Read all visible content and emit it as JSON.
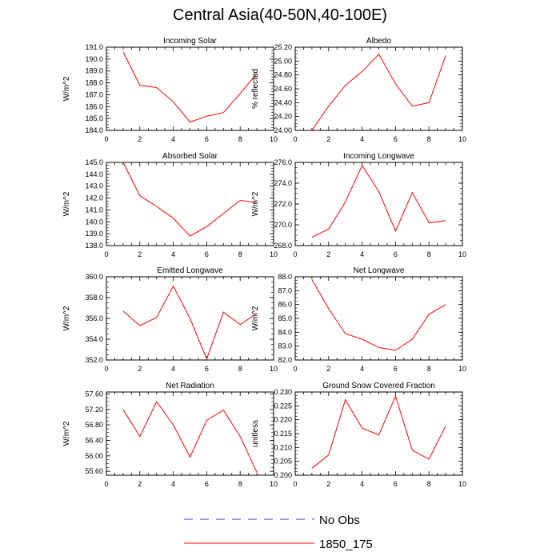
{
  "title": "Central Asia(40-50N,40-100E)",
  "legend": {
    "position": "bottom-center",
    "items": [
      {
        "label": "No Obs",
        "color": "#3b3bd6",
        "style": "dashed"
      },
      {
        "label": "1850_175",
        "color": "#ff0000",
        "style": "solid"
      }
    ]
  },
  "chart_data": [
    {
      "type": "line",
      "title": "Incoming Solar",
      "xlabel": "",
      "ylabel": "W/m^2",
      "xlim": [
        0,
        10
      ],
      "ylim": [
        184.0,
        191.0
      ],
      "xticks": [
        0,
        2,
        4,
        6,
        8,
        10
      ],
      "yticks": [
        "184.0",
        "185.0",
        "186.0",
        "187.0",
        "188.0",
        "189.0",
        "190.0",
        "191.0"
      ],
      "series": [
        {
          "name": "1850_175",
          "color": "#ff0000",
          "x": [
            1,
            2,
            3,
            4,
            5,
            6,
            7,
            8,
            9
          ],
          "y": [
            190.6,
            187.8,
            187.6,
            186.4,
            184.7,
            185.2,
            185.5,
            187.1,
            188.8
          ]
        }
      ]
    },
    {
      "type": "line",
      "title": "Albedo",
      "xlabel": "",
      "ylabel": "% reflected",
      "xlim": [
        0,
        10
      ],
      "ylim": [
        24.0,
        25.2
      ],
      "xticks": [
        0,
        2,
        4,
        6,
        8,
        10
      ],
      "yticks": [
        "24.00",
        "24.20",
        "24.40",
        "24.60",
        "24.80",
        "25.00",
        "25.20"
      ],
      "series": [
        {
          "name": "1850_175",
          "color": "#ff0000",
          "x": [
            1,
            2,
            3,
            4,
            5,
            6,
            7,
            8,
            9
          ],
          "y": [
            24.0,
            24.35,
            24.65,
            24.85,
            25.1,
            24.67,
            24.35,
            24.4,
            25.08
          ]
        }
      ]
    },
    {
      "type": "line",
      "title": "Absorbed Solar",
      "xlabel": "",
      "ylabel": "W/m^2",
      "xlim": [
        0,
        10
      ],
      "ylim": [
        138.0,
        145.0
      ],
      "xticks": [
        0,
        2,
        4,
        6,
        8,
        10
      ],
      "yticks": [
        "138.0",
        "139.0",
        "140.0",
        "141.0",
        "142.0",
        "143.0",
        "144.0",
        "145.0"
      ],
      "series": [
        {
          "name": "1850_175",
          "color": "#ff0000",
          "x": [
            1,
            2,
            3,
            4,
            5,
            6,
            7,
            8,
            9
          ],
          "y": [
            145.0,
            142.2,
            141.3,
            140.3,
            138.8,
            139.6,
            140.7,
            141.8,
            141.6
          ]
        }
      ]
    },
    {
      "type": "line",
      "title": "Incoming Longwave",
      "xlabel": "",
      "ylabel": "W/m^2",
      "xlim": [
        0,
        10
      ],
      "ylim": [
        268.0,
        276.0
      ],
      "xticks": [
        0,
        2,
        4,
        6,
        8,
        10
      ],
      "yticks": [
        "268.0",
        "270.0",
        "272.0",
        "274.0",
        "276.0"
      ],
      "series": [
        {
          "name": "1850_175",
          "color": "#ff0000",
          "x": [
            1,
            2,
            3,
            4,
            5,
            6,
            7,
            8,
            9
          ],
          "y": [
            268.8,
            269.6,
            272.2,
            275.7,
            273.2,
            269.4,
            273.1,
            270.2,
            270.4
          ]
        }
      ]
    },
    {
      "type": "line",
      "title": "Emitted Longwave",
      "xlabel": "",
      "ylabel": "W/m^2",
      "xlim": [
        0,
        10
      ],
      "ylim": [
        352.0,
        360.0
      ],
      "xticks": [
        0,
        2,
        4,
        6,
        8,
        10
      ],
      "yticks": [
        "352.0",
        "354.0",
        "356.0",
        "358.0",
        "360.0"
      ],
      "series": [
        {
          "name": "1850_175",
          "color": "#ff0000",
          "x": [
            1,
            2,
            3,
            4,
            5,
            6,
            7,
            8,
            9
          ],
          "y": [
            356.7,
            355.3,
            356.1,
            359.1,
            356.0,
            352.1,
            356.6,
            355.4,
            356.5
          ]
        }
      ]
    },
    {
      "type": "line",
      "title": "Net Longwave",
      "xlabel": "",
      "ylabel": "W/m^2",
      "xlim": [
        0,
        10
      ],
      "ylim": [
        82.0,
        88.0
      ],
      "xticks": [
        0,
        2,
        4,
        6,
        8,
        10
      ],
      "yticks": [
        "82.0",
        "83.0",
        "84.0",
        "85.0",
        "86.0",
        "87.0",
        "88.0"
      ],
      "series": [
        {
          "name": "1850_175",
          "color": "#ff0000",
          "x": [
            1,
            2,
            3,
            4,
            5,
            6,
            7,
            8,
            9
          ],
          "y": [
            87.8,
            85.7,
            83.9,
            83.5,
            82.9,
            82.7,
            83.5,
            85.3,
            86.0
          ]
        }
      ]
    },
    {
      "type": "line",
      "title": "Net Radiation",
      "xlabel": "",
      "ylabel": "W/m^2",
      "xlim": [
        0,
        10
      ],
      "ylim": [
        55.5,
        57.65
      ],
      "xticks": [
        0,
        2,
        4,
        6,
        8,
        10
      ],
      "yticks": [
        "55.60",
        "56.00",
        "56.40",
        "56.80",
        "57.20",
        "57.60"
      ],
      "series": [
        {
          "name": "1850_175",
          "color": "#ff0000",
          "x": [
            1,
            2,
            3,
            4,
            5,
            6,
            7,
            8,
            9
          ],
          "y": [
            57.2,
            56.5,
            57.4,
            56.8,
            55.97,
            56.92,
            57.18,
            56.5,
            55.57
          ]
        }
      ]
    },
    {
      "type": "line",
      "title": "Ground Snow Covered Fraction",
      "xlabel": "",
      "ylabel": "unitless",
      "xlim": [
        0,
        10
      ],
      "ylim": [
        0.2,
        0.23
      ],
      "xticks": [
        0,
        2,
        4,
        6,
        8,
        10
      ],
      "yticks": [
        "0.200",
        "0.205",
        "0.210",
        "0.215",
        "0.220",
        "0.225",
        "0.230"
      ],
      "series": [
        {
          "name": "1850_175",
          "color": "#ff0000",
          "x": [
            1,
            2,
            3,
            4,
            5,
            6,
            7,
            8,
            9
          ],
          "y": [
            0.2025,
            0.2073,
            0.2272,
            0.217,
            0.2145,
            0.2285,
            0.209,
            0.2058,
            0.2178
          ]
        }
      ]
    }
  ]
}
